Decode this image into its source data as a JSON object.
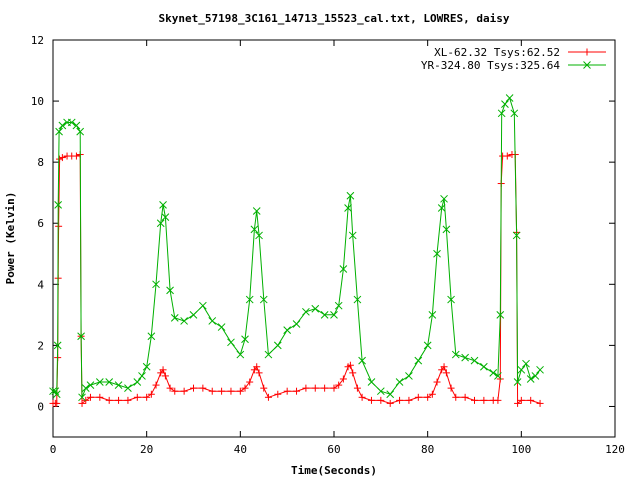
{
  "chart_data": {
    "type": "line",
    "title": "Skynet_57198_3C161_14713_15523_cal.txt, LOWRES, daisy",
    "xlabel": "Time(Seconds)",
    "ylabel": "Power (Kelvin)",
    "xlim": [
      0,
      120
    ],
    "ylim": [
      -1,
      12
    ],
    "x_ticks": [
      0,
      20,
      40,
      60,
      80,
      100,
      120
    ],
    "y_ticks": [
      0,
      2,
      4,
      6,
      8,
      10,
      12
    ],
    "grid": false,
    "legend_position": "top-right",
    "series": [
      {
        "name": "XL-62.32 Tsys:62.52",
        "color": "#ff0000",
        "marker": "plus",
        "points": [
          [
            0.0,
            0.1
          ],
          [
            0.5,
            0.1
          ],
          [
            0.8,
            0.1
          ],
          [
            1.0,
            1.6
          ],
          [
            1.1,
            4.2
          ],
          [
            1.2,
            5.9
          ],
          [
            1.4,
            8.1
          ],
          [
            2.0,
            8.15
          ],
          [
            3.0,
            8.2
          ],
          [
            4.0,
            8.2
          ],
          [
            5.0,
            8.2
          ],
          [
            5.8,
            8.25
          ],
          [
            6.0,
            2.3
          ],
          [
            6.2,
            0.1
          ],
          [
            7.0,
            0.2
          ],
          [
            8.0,
            0.3
          ],
          [
            10.0,
            0.3
          ],
          [
            12.0,
            0.2
          ],
          [
            14.0,
            0.2
          ],
          [
            16.0,
            0.2
          ],
          [
            18.0,
            0.3
          ],
          [
            20.0,
            0.3
          ],
          [
            21.0,
            0.4
          ],
          [
            22.0,
            0.7
          ],
          [
            23.0,
            1.1
          ],
          [
            23.5,
            1.2
          ],
          [
            24.0,
            1.0
          ],
          [
            25.0,
            0.6
          ],
          [
            26.0,
            0.5
          ],
          [
            28.0,
            0.5
          ],
          [
            30.0,
            0.6
          ],
          [
            32.0,
            0.6
          ],
          [
            34.0,
            0.5
          ],
          [
            36.0,
            0.5
          ],
          [
            38.0,
            0.5
          ],
          [
            40.0,
            0.5
          ],
          [
            41.0,
            0.6
          ],
          [
            42.0,
            0.8
          ],
          [
            43.0,
            1.2
          ],
          [
            43.5,
            1.3
          ],
          [
            44.0,
            1.1
          ],
          [
            45.0,
            0.6
          ],
          [
            46.0,
            0.3
          ],
          [
            48.0,
            0.4
          ],
          [
            50.0,
            0.5
          ],
          [
            52.0,
            0.5
          ],
          [
            54.0,
            0.6
          ],
          [
            56.0,
            0.6
          ],
          [
            58.0,
            0.6
          ],
          [
            60.0,
            0.6
          ],
          [
            61.0,
            0.7
          ],
          [
            62.0,
            0.9
          ],
          [
            63.0,
            1.3
          ],
          [
            63.5,
            1.35
          ],
          [
            64.0,
            1.1
          ],
          [
            65.0,
            0.6
          ],
          [
            66.0,
            0.3
          ],
          [
            68.0,
            0.2
          ],
          [
            70.0,
            0.2
          ],
          [
            72.0,
            0.1
          ],
          [
            74.0,
            0.2
          ],
          [
            76.0,
            0.2
          ],
          [
            78.0,
            0.3
          ],
          [
            80.0,
            0.3
          ],
          [
            81.0,
            0.4
          ],
          [
            82.0,
            0.8
          ],
          [
            83.0,
            1.2
          ],
          [
            83.5,
            1.3
          ],
          [
            84.0,
            1.1
          ],
          [
            85.0,
            0.6
          ],
          [
            86.0,
            0.3
          ],
          [
            88.0,
            0.3
          ],
          [
            90.0,
            0.2
          ],
          [
            92.0,
            0.2
          ],
          [
            94.0,
            0.2
          ],
          [
            95.0,
            0.2
          ],
          [
            95.5,
            0.9
          ],
          [
            95.7,
            7.3
          ],
          [
            96.0,
            8.2
          ],
          [
            97.0,
            8.2
          ],
          [
            98.0,
            8.25
          ],
          [
            98.7,
            8.25
          ],
          [
            99.0,
            5.7
          ],
          [
            99.2,
            0.1
          ],
          [
            100.0,
            0.2
          ],
          [
            102.0,
            0.2
          ],
          [
            104.0,
            0.1
          ]
        ]
      },
      {
        "name": "YR-324.80 Tsys:325.64",
        "color": "#00b000",
        "marker": "cross",
        "points": [
          [
            0.0,
            0.5
          ],
          [
            0.5,
            0.5
          ],
          [
            0.8,
            0.4
          ],
          [
            1.0,
            2.0
          ],
          [
            1.1,
            6.6
          ],
          [
            1.3,
            9.0
          ],
          [
            2.0,
            9.2
          ],
          [
            3.0,
            9.3
          ],
          [
            4.0,
            9.3
          ],
          [
            5.0,
            9.2
          ],
          [
            5.8,
            9.0
          ],
          [
            6.0,
            2.3
          ],
          [
            6.2,
            0.3
          ],
          [
            7.0,
            0.6
          ],
          [
            8.0,
            0.7
          ],
          [
            10.0,
            0.8
          ],
          [
            12.0,
            0.8
          ],
          [
            14.0,
            0.7
          ],
          [
            16.0,
            0.6
          ],
          [
            18.0,
            0.8
          ],
          [
            19.0,
            1.0
          ],
          [
            20.0,
            1.3
          ],
          [
            21.0,
            2.3
          ],
          [
            22.0,
            4.0
          ],
          [
            23.0,
            6.0
          ],
          [
            23.5,
            6.6
          ],
          [
            24.0,
            6.2
          ],
          [
            25.0,
            3.8
          ],
          [
            26.0,
            2.9
          ],
          [
            28.0,
            2.8
          ],
          [
            30.0,
            3.0
          ],
          [
            32.0,
            3.3
          ],
          [
            34.0,
            2.8
          ],
          [
            36.0,
            2.6
          ],
          [
            38.0,
            2.1
          ],
          [
            40.0,
            1.7
          ],
          [
            41.0,
            2.2
          ],
          [
            42.0,
            3.5
          ],
          [
            43.0,
            5.8
          ],
          [
            43.5,
            6.4
          ],
          [
            44.0,
            5.6
          ],
          [
            45.0,
            3.5
          ],
          [
            46.0,
            1.7
          ],
          [
            48.0,
            2.0
          ],
          [
            50.0,
            2.5
          ],
          [
            52.0,
            2.7
          ],
          [
            54.0,
            3.1
          ],
          [
            56.0,
            3.2
          ],
          [
            58.0,
            3.0
          ],
          [
            60.0,
            3.0
          ],
          [
            61.0,
            3.3
          ],
          [
            62.0,
            4.5
          ],
          [
            63.0,
            6.5
          ],
          [
            63.5,
            6.9
          ],
          [
            64.0,
            5.6
          ],
          [
            65.0,
            3.5
          ],
          [
            66.0,
            1.5
          ],
          [
            68.0,
            0.8
          ],
          [
            70.0,
            0.5
          ],
          [
            72.0,
            0.4
          ],
          [
            74.0,
            0.8
          ],
          [
            76.0,
            1.0
          ],
          [
            78.0,
            1.5
          ],
          [
            80.0,
            2.0
          ],
          [
            81.0,
            3.0
          ],
          [
            82.0,
            5.0
          ],
          [
            83.0,
            6.5
          ],
          [
            83.5,
            6.8
          ],
          [
            84.0,
            5.8
          ],
          [
            85.0,
            3.5
          ],
          [
            86.0,
            1.7
          ],
          [
            88.0,
            1.6
          ],
          [
            90.0,
            1.5
          ],
          [
            92.0,
            1.3
          ],
          [
            94.0,
            1.1
          ],
          [
            95.0,
            1.0
          ],
          [
            95.5,
            3.0
          ],
          [
            95.8,
            9.6
          ],
          [
            96.5,
            9.9
          ],
          [
            97.5,
            10.1
          ],
          [
            98.5,
            9.6
          ],
          [
            99.0,
            5.6
          ],
          [
            99.2,
            0.8
          ],
          [
            100.0,
            1.2
          ],
          [
            101.0,
            1.4
          ],
          [
            102.0,
            0.9
          ],
          [
            103.0,
            1.0
          ],
          [
            104.0,
            1.2
          ]
        ]
      }
    ]
  }
}
